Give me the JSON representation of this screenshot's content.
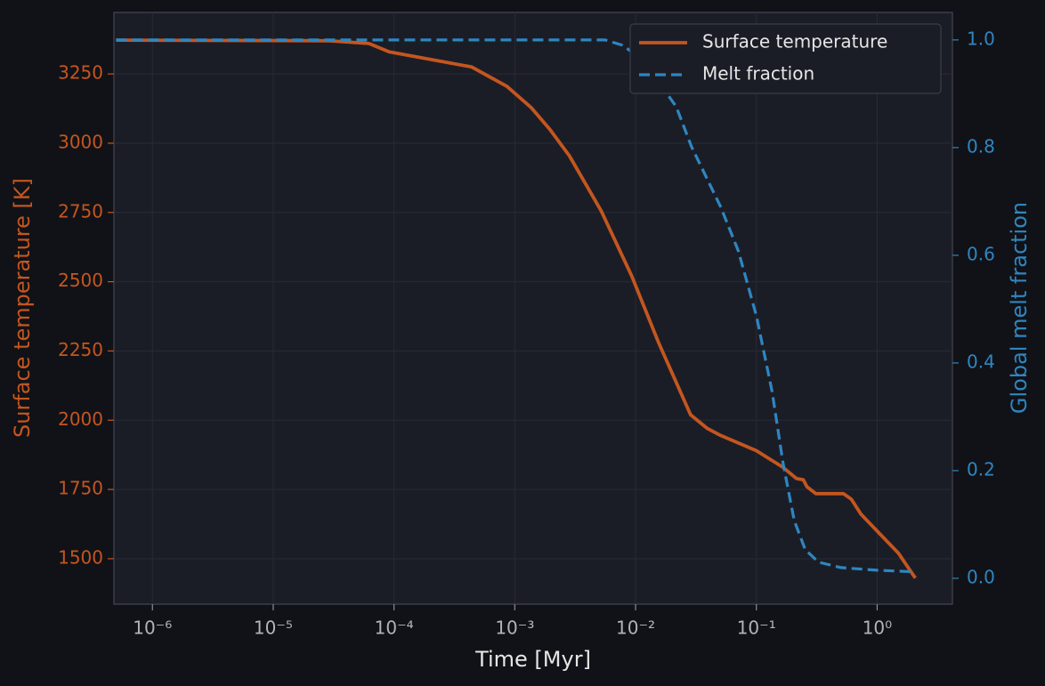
{
  "chart_data": {
    "type": "line",
    "xlabel": "Time [Myr]",
    "ylabel": "Surface temperature [K]",
    "y2label": "Global melt fraction",
    "xscale": "log",
    "grid": true,
    "legend": "upper right",
    "xlim": [
      4.8e-07,
      4.2
    ],
    "ylim": [
      1336,
      3472
    ],
    "y2lim": [
      -0.048,
      1.051
    ],
    "xticks": [
      {
        "value": 1e-06,
        "label": "10⁻⁶"
      },
      {
        "value": 1e-05,
        "label": "10⁻⁵"
      },
      {
        "value": 0.0001,
        "label": "10⁻⁴"
      },
      {
        "value": 0.001,
        "label": "10⁻³"
      },
      {
        "value": 0.01,
        "label": "10⁻²"
      },
      {
        "value": 0.1,
        "label": "10⁻¹"
      },
      {
        "value": 1,
        "label": "10⁰"
      }
    ],
    "yticks": [
      1500,
      1750,
      2000,
      2250,
      2500,
      2750,
      3000,
      3250
    ],
    "y2ticks": [
      {
        "value": 0,
        "label": "0.0"
      },
      0.2,
      0.4,
      0.6,
      0.8,
      {
        "value": 1,
        "label": "1.0"
      }
    ],
    "series": [
      {
        "name": "Surface temperature",
        "color": "#c4561f",
        "dash": "solid",
        "x": [
          5e-07,
          2.9e-05,
          6.2e-05,
          9.1e-05,
          0.00044,
          0.00086,
          0.00137,
          0.00195,
          0.00283,
          0.0052,
          0.0093,
          0.0155,
          0.0285,
          0.0393,
          0.0506,
          0.1,
          0.166,
          0.214,
          0.245,
          0.262,
          0.31,
          0.525,
          0.611,
          0.736,
          1.0,
          1.5,
          2.07
        ],
        "values": [
          3372,
          3370,
          3360,
          3330,
          3275,
          3205,
          3128,
          3050,
          2955,
          2755,
          2520,
          2280,
          2020,
          1970,
          1945,
          1890,
          1830,
          1790,
          1785,
          1760,
          1735,
          1735,
          1715,
          1660,
          1600,
          1520,
          1430
        ]
      },
      {
        "name": "Melt fraction",
        "color": "#2e86c1",
        "dash": "dashed",
        "axis": "y2",
        "x": [
          5e-07,
          0.0056,
          0.0078,
          0.0101,
          0.0155,
          0.0217,
          0.029,
          0.0506,
          0.071,
          0.1,
          0.135,
          0.166,
          0.206,
          0.254,
          0.327,
          0.5,
          1.0,
          2.07
        ],
        "values": [
          1.0,
          1.0,
          0.99,
          0.972,
          0.922,
          0.876,
          0.802,
          0.69,
          0.608,
          0.488,
          0.347,
          0.215,
          0.107,
          0.053,
          0.03,
          0.02,
          0.015,
          0.012
        ]
      }
    ]
  }
}
